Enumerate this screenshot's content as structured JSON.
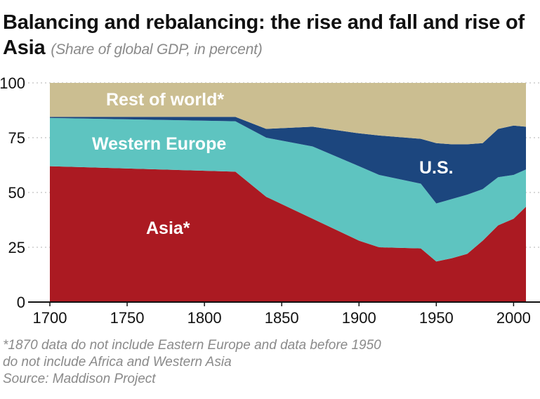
{
  "chart_data": {
    "type": "area",
    "title": "Balancing and rebalancing: the rise and fall and rise of Asia",
    "subtitle": "(Share of global GDP, in percent)",
    "xlabel": "",
    "ylabel": "",
    "xlim": [
      1700,
      2008
    ],
    "ylim": [
      0,
      100
    ],
    "x_ticks": [
      1700,
      1750,
      1800,
      1850,
      1900,
      1950,
      2000
    ],
    "y_ticks": [
      0,
      25,
      50,
      75,
      100
    ],
    "stacked": true,
    "x": [
      1700,
      1820,
      1840,
      1870,
      1900,
      1913,
      1940,
      1950,
      1960,
      1970,
      1980,
      1990,
      2000,
      2008
    ],
    "series": [
      {
        "name": "Asia*",
        "color": "#ab1a22",
        "values": [
          62,
          59.5,
          48,
          38,
          28,
          25,
          24.5,
          18.5,
          20,
          22,
          28,
          35,
          38,
          43.5
        ]
      },
      {
        "name": "Western Europe",
        "color": "#5ec4c0",
        "values": [
          22,
          23,
          27,
          33,
          34,
          33,
          29.5,
          26.5,
          27,
          27,
          23.5,
          22,
          20,
          17
        ]
      },
      {
        "name": "U.S.",
        "color": "#1c467e",
        "values": [
          0.5,
          2,
          4,
          9,
          15,
          18,
          20.5,
          27.5,
          25,
          23,
          21,
          22,
          22.5,
          19.5
        ]
      },
      {
        "name": "Rest of world*",
        "color": "#cbbe91",
        "values": [
          15.5,
          15.5,
          21,
          20,
          23,
          24,
          25.5,
          27.5,
          28,
          28,
          27.5,
          21,
          19.5,
          20
        ]
      }
    ],
    "series_labels": {
      "rest": "Rest of world*",
      "europe": "Western Europe",
      "us": "U.S.",
      "asia": "Asia*"
    },
    "notes": [
      "*1870 data do not include Eastern Europe and data before 1950",
      "do not include Africa and Western Asia",
      "Source: Maddison Project"
    ]
  }
}
